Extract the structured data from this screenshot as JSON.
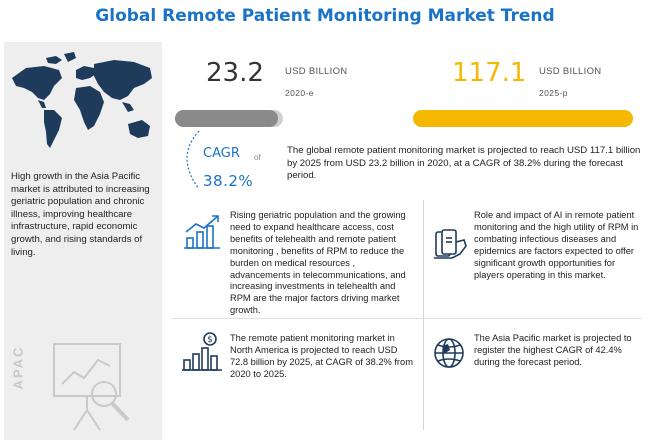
{
  "title": "Global Remote Patient Monitoring Market Trend",
  "market_2020": {
    "value": "23.2",
    "unit": "USD BILLION",
    "year": "2020-e"
  },
  "market_2025": {
    "value": "117.1",
    "unit": "USD BILLION",
    "year": "2025-p",
    "color": "#f5b800"
  },
  "cagr": {
    "label": "CAGR",
    "of": "of",
    "value": "38.2%"
  },
  "summary": "The global remote patient monitoring market is projected to reach USD 117.1 billion by 2025 from USD 23.2 billion in 2020, at a CAGR of 38.2% during the forecast period.",
  "left_panel": {
    "text": "High growth in the Asia Pacific market is attributed to increasing geriatric population and chronic illness, improving healthcare infrastructure, rapid economic growth, and rising standards of living.",
    "region_label": "APAC"
  },
  "insights": {
    "drivers": "Rising geriatric population and the growing need to expand healthcare access, cost benefits of telehealth and remote patient monitoring , benefits of RPM to reduce the burden on medical resources , advancements in telecommunications, and increasing investments in telehealth and RPM are the major factors driving market growth.",
    "ai_role": "Role and impact of AI in remote patient monitoring and the high utility of RPM in combating infectious diseases and epidemics are factors expected to offer significant growth opportunities for players operating in this market.",
    "north_america": "The remote patient monitoring market in North America is projected to reach USD 72.8 billion by 2025, at CAGR of 38.2% from 2020 to 2025.",
    "asia_pacific": "The Asia Pacific market is projected to register the highest CAGR of 42.4% during the forecast period."
  },
  "colors": {
    "accent": "#1a73c7",
    "highlight": "#f5b800",
    "bar_gray": "#8a8a8a"
  },
  "icons": [
    "world-map-icon",
    "growth-chart-icon",
    "money-hand-icon",
    "dollar-bar-chart-icon",
    "globe-icon",
    "presentation-magnifier-icon"
  ]
}
